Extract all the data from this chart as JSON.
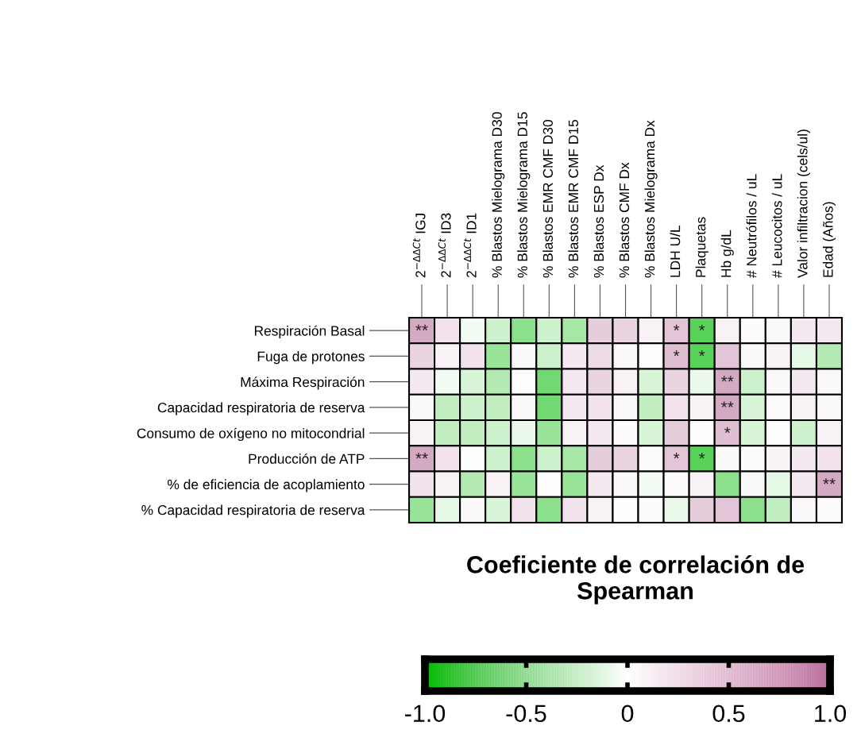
{
  "chart_data": {
    "type": "heatmap",
    "clabel": "Coeficiente de correlación de Spearman",
    "categories": [
      "2$^{−ΔΔCt}$ IGJ",
      "2$^{−ΔΔCt}$ ID3",
      "2$^{−ΔΔCt}$ ID1",
      "% Blastos Mielograma D30",
      "% Blastos Mielograma D15",
      "% Blastos EMR CMF D30",
      "% Blastos EMR CMF D15",
      "% Blastos ESP Dx",
      "% Blastos CMF Dx",
      "% Blastos Mielograma Dx",
      "LDH U/L",
      "Plaquetas",
      "Hb g/dL",
      "# Neutrófilos / uL",
      "# Leucocitos / uL",
      "Valor infiltracion (cels/ul)",
      "Edad (Años)"
    ],
    "y_categories": [
      "Respiración Basal",
      "Fuga de protones",
      "Máxima Respiración",
      "Capacidad respiratoria de reserva",
      "Consumo de oxígeno no mitocondrial",
      "Producción de ATP",
      "% de eficiencia de acoplamiento",
      "% Capacidad respiratoria de reserva"
    ],
    "cells": [
      [
        0.6,
        0.2,
        -0.05,
        -0.2,
        -0.45,
        -0.2,
        -0.35,
        0.35,
        0.3,
        0.1,
        0.4,
        -0.65,
        0.1,
        0.03,
        0.05,
        0.15,
        0.15
      ],
      [
        0.3,
        0.1,
        0.2,
        -0.4,
        0.05,
        -0.2,
        0.15,
        0.25,
        0.05,
        0,
        0.45,
        -0.65,
        0.4,
        0.05,
        0.1,
        -0.1,
        -0.3
      ],
      [
        0.15,
        -0.05,
        -0.15,
        -0.3,
        0.02,
        -0.55,
        0.15,
        0.3,
        0.1,
        -0.15,
        0.3,
        -0.08,
        0.6,
        -0.2,
        0.05,
        0.15,
        0.05
      ],
      [
        0.05,
        -0.25,
        -0.2,
        -0.25,
        0.05,
        -0.55,
        0.15,
        0.2,
        0.05,
        -0.25,
        0.2,
        0.1,
        0.6,
        -0.15,
        0.03,
        0.1,
        0.05
      ],
      [
        0.1,
        -0.25,
        -0.25,
        -0.2,
        -0.08,
        -0.4,
        0.1,
        0.15,
        0.03,
        -0.15,
        0.35,
        0,
        0.45,
        -0.15,
        0,
        -0.2,
        0.1
      ],
      [
        0.6,
        0.2,
        0,
        -0.2,
        -0.45,
        -0.2,
        -0.35,
        0.35,
        0.3,
        0.03,
        0.4,
        -0.65,
        0.05,
        0.03,
        0.08,
        0.15,
        0.2
      ],
      [
        0.2,
        0.1,
        -0.3,
        0.1,
        -0.4,
        0.02,
        -0.4,
        0.15,
        0.05,
        -0.05,
        0.03,
        0.1,
        -0.45,
        0.05,
        -0.1,
        0.15,
        0.6
      ],
      [
        -0.4,
        -0.1,
        0.05,
        -0.15,
        0.2,
        -0.45,
        0.2,
        0.1,
        0,
        0.03,
        -0.08,
        0.35,
        0.4,
        -0.45,
        -0.25,
        0.05,
        0.03
      ]
    ],
    "cell_labels": [
      [
        "**",
        null,
        null,
        null,
        null,
        null,
        null,
        null,
        null,
        null,
        "*",
        "*",
        null,
        null,
        null,
        null,
        null
      ],
      [
        null,
        null,
        null,
        null,
        null,
        null,
        null,
        null,
        null,
        null,
        "*",
        "*",
        null,
        null,
        null,
        null,
        null
      ],
      [
        null,
        null,
        null,
        null,
        null,
        null,
        null,
        null,
        null,
        null,
        null,
        null,
        "**",
        null,
        null,
        null,
        null
      ],
      [
        null,
        null,
        null,
        null,
        null,
        null,
        null,
        null,
        null,
        null,
        null,
        null,
        "**",
        null,
        null,
        null,
        null
      ],
      [
        null,
        null,
        null,
        null,
        null,
        null,
        null,
        null,
        null,
        null,
        null,
        null,
        "*",
        null,
        null,
        null,
        null
      ],
      [
        "**",
        null,
        null,
        null,
        null,
        null,
        null,
        null,
        null,
        null,
        "*",
        "*",
        null,
        null,
        null,
        null,
        null
      ],
      [
        null,
        null,
        null,
        null,
        null,
        null,
        null,
        null,
        null,
        null,
        null,
        null,
        null,
        null,
        null,
        null,
        "**"
      ],
      [
        null,
        null,
        null,
        null,
        null,
        null,
        null,
        null,
        null,
        null,
        null,
        null,
        null,
        null,
        null,
        null,
        null
      ]
    ],
    "colors": [
      "#00bb00",
      "#ffffff",
      "#b8709a"
    ],
    "clim": [
      -1,
      1
    ],
    "cticks": [
      {
        "value": -1,
        "label": "-1.0"
      },
      {
        "value": -0.5,
        "label": "-0.5"
      },
      0,
      {
        "value": 0.5,
        "label": "0.5"
      },
      {
        "value": 1,
        "label": "1.0"
      }
    ]
  }
}
